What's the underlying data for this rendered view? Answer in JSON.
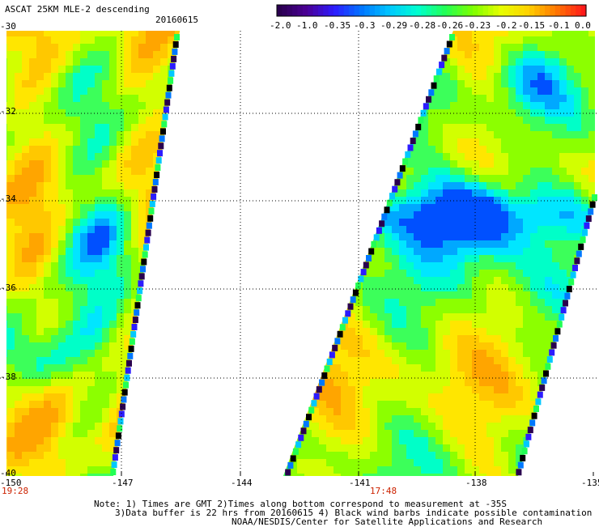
{
  "header": {
    "title": "ASCAT 25KM MLE-2 descending",
    "date": "20160615"
  },
  "colorbar": {
    "labels": [
      "-2.0",
      "-1.0",
      "-0.35",
      "-0.3",
      "-0.29",
      "-0.28",
      "-0.26",
      "-0.23",
      "-0.2",
      "-0.15",
      "-0.1",
      "0.0"
    ],
    "colors": [
      "#2a004f",
      "#4b0096",
      "#2c1cff",
      "#0078ff",
      "#00c8ff",
      "#00ffd0",
      "#22ff55",
      "#7dff00",
      "#e6ff00",
      "#ffd200",
      "#ff7800",
      "#ff1a1a"
    ]
  },
  "axes": {
    "lat_labels": [
      "-30",
      "-32",
      "-34",
      "-36",
      "-38",
      "-40"
    ],
    "lon_labels": [
      "-150",
      "-147",
      "-144",
      "-141",
      "-138",
      "-135"
    ]
  },
  "swaths": {
    "left_time": "19:28",
    "right_time": "17:48"
  },
  "notes": {
    "line1": "Note: 1) Times are GMT 2)Times along bottom correspond to measurement at -35S",
    "line2": "3)Data buffer is 22 hrs from 20160615 4) Black wind barbs indicate possible contamination",
    "line3": "NOAA/NESDIS/Center for Satellite Applications and Research"
  }
}
